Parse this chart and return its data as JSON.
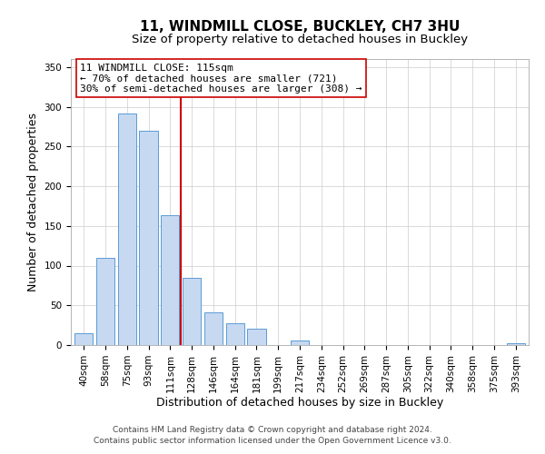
{
  "title": "11, WINDMILL CLOSE, BUCKLEY, CH7 3HU",
  "subtitle": "Size of property relative to detached houses in Buckley",
  "xlabel": "Distribution of detached houses by size in Buckley",
  "ylabel": "Number of detached properties",
  "bar_labels": [
    "40sqm",
    "58sqm",
    "75sqm",
    "93sqm",
    "111sqm",
    "128sqm",
    "146sqm",
    "164sqm",
    "181sqm",
    "199sqm",
    "217sqm",
    "234sqm",
    "252sqm",
    "269sqm",
    "287sqm",
    "305sqm",
    "322sqm",
    "340sqm",
    "358sqm",
    "375sqm",
    "393sqm"
  ],
  "bar_values": [
    15,
    110,
    292,
    270,
    163,
    85,
    41,
    27,
    21,
    0,
    6,
    0,
    0,
    0,
    0,
    0,
    0,
    0,
    0,
    0,
    2
  ],
  "bar_color": "#c6d9f1",
  "bar_edge_color": "#5b9bd5",
  "vline_color": "#cc0000",
  "annotation_title": "11 WINDMILL CLOSE: 115sqm",
  "annotation_line1": "← 70% of detached houses are smaller (721)",
  "annotation_line2": "30% of semi-detached houses are larger (308) →",
  "annotation_box_color": "#ffffff",
  "annotation_box_edge": "#cc0000",
  "ylim": [
    0,
    360
  ],
  "yticks": [
    0,
    50,
    100,
    150,
    200,
    250,
    300,
    350
  ],
  "footer1": "Contains HM Land Registry data © Crown copyright and database right 2024.",
  "footer2": "Contains public sector information licensed under the Open Government Licence v3.0.",
  "title_fontsize": 11,
  "subtitle_fontsize": 9.5,
  "axis_label_fontsize": 9,
  "tick_fontsize": 7.5,
  "annotation_fontsize": 8,
  "footer_fontsize": 6.5
}
